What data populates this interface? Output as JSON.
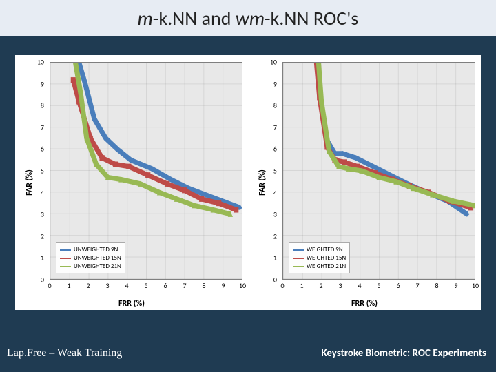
{
  "title_parts": {
    "p1": "m",
    "p2": "-k.NN and ",
    "p3": "wm",
    "p4": "-k.NN ROC's"
  },
  "footer": {
    "left": "Lap.Free – Weak Training",
    "right": "Keystroke Biometric: ROC Experiments"
  },
  "axes": {
    "ylabel": "FAR (%)",
    "xlabel": "FRR (%)",
    "xlim": [
      0,
      10
    ],
    "ylim": [
      0,
      10
    ],
    "xticks": [
      0,
      1,
      2,
      3,
      4,
      5,
      6,
      7,
      8,
      9,
      10
    ],
    "yticks": [
      0,
      1,
      2,
      3,
      4,
      5,
      6,
      7,
      8,
      9,
      10
    ],
    "tick_fontsize": 10,
    "label_fontsize": 12,
    "plot_bg": "#e8e8e8",
    "grid_color": "#cfcfcf",
    "border_color": "#7f7f7f"
  },
  "colors": {
    "s1": "#4a7ebb",
    "s2": "#be4b48",
    "s3": "#98b954"
  },
  "markers": {
    "s1": "diamond",
    "s2": "square",
    "s3": "triangle"
  },
  "line_width": 2,
  "marker_size": 7,
  "left_chart": {
    "type": "line",
    "legend": [
      "UNWEIGHTED 9N",
      "UNWEIGHTED 15N",
      "UNWEIGHTED 21N"
    ],
    "series": {
      "s1": [
        [
          1.3,
          10.6
        ],
        [
          1.8,
          9.1
        ],
        [
          2.3,
          7.4
        ],
        [
          2.9,
          6.5
        ],
        [
          3.5,
          6.0
        ],
        [
          4.2,
          5.5
        ],
        [
          5.3,
          5.1
        ],
        [
          6.3,
          4.6
        ],
        [
          7.2,
          4.2
        ],
        [
          8.1,
          3.9
        ],
        [
          9.0,
          3.6
        ],
        [
          9.9,
          3.3
        ]
      ],
      "s2": [
        [
          1.2,
          9.2
        ],
        [
          1.5,
          8.2
        ],
        [
          2.1,
          6.5
        ],
        [
          2.7,
          5.6
        ],
        [
          3.4,
          5.3
        ],
        [
          4.1,
          5.2
        ],
        [
          5.1,
          4.8
        ],
        [
          6.1,
          4.4
        ],
        [
          7.0,
          4.1
        ],
        [
          7.9,
          3.7
        ],
        [
          8.8,
          3.5
        ],
        [
          9.7,
          3.2
        ]
      ],
      "s3": [
        [
          1.2,
          10.6
        ],
        [
          1.6,
          8.5
        ],
        [
          1.9,
          6.5
        ],
        [
          2.4,
          5.3
        ],
        [
          3.0,
          4.7
        ],
        [
          3.7,
          4.6
        ],
        [
          4.7,
          4.4
        ],
        [
          5.7,
          4.0
        ],
        [
          6.6,
          3.7
        ],
        [
          7.5,
          3.4
        ],
        [
          8.5,
          3.2
        ],
        [
          9.4,
          3.0
        ]
      ]
    }
  },
  "right_chart": {
    "type": "line",
    "legend": [
      "WEIGHTED 9N",
      "WEIGHTED 15N",
      "WEIGHTED 21N"
    ],
    "series": {
      "s1": [
        [
          1.7,
          10.6
        ],
        [
          1.9,
          8.7
        ],
        [
          2.3,
          6.4
        ],
        [
          2.7,
          5.8
        ],
        [
          3.1,
          5.8
        ],
        [
          3.8,
          5.6
        ],
        [
          4.7,
          5.2
        ],
        [
          5.6,
          4.8
        ],
        [
          6.5,
          4.4
        ],
        [
          7.5,
          4.0
        ],
        [
          8.6,
          3.6
        ],
        [
          9.6,
          3.0
        ]
      ],
      "s2": [
        [
          1.7,
          10.4
        ],
        [
          1.9,
          8.4
        ],
        [
          2.3,
          6.1
        ],
        [
          2.7,
          5.5
        ],
        [
          3.2,
          5.4
        ],
        [
          3.9,
          5.2
        ],
        [
          4.8,
          4.9
        ],
        [
          5.7,
          4.6
        ],
        [
          6.6,
          4.3
        ],
        [
          7.6,
          4.0
        ],
        [
          8.7,
          3.6
        ],
        [
          9.8,
          3.3
        ]
      ],
      "s3": [
        [
          1.8,
          10.6
        ],
        [
          2.0,
          8.2
        ],
        [
          2.4,
          5.9
        ],
        [
          2.9,
          5.2
        ],
        [
          3.4,
          5.1
        ],
        [
          4.1,
          5.0
        ],
        [
          5.0,
          4.7
        ],
        [
          5.9,
          4.5
        ],
        [
          6.8,
          4.2
        ],
        [
          7.8,
          3.9
        ],
        [
          8.9,
          3.6
        ],
        [
          10.0,
          3.4
        ]
      ]
    }
  }
}
